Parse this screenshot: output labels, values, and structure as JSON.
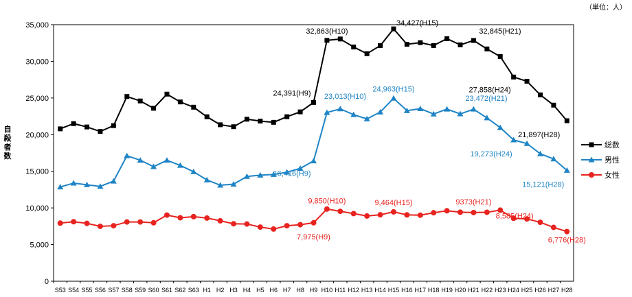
{
  "unit_label": "（単位：人）",
  "ylabel": "自殺者数",
  "chart_data": {
    "type": "line",
    "title": "",
    "unit": "（単位：人）",
    "ylabel": "自殺者数",
    "xlabel": "",
    "ylim": [
      0,
      35000
    ],
    "yticks": [
      0,
      5000,
      10000,
      15000,
      20000,
      25000,
      30000,
      35000
    ],
    "ytick_labels": [
      "0",
      "5,000",
      "10,000",
      "15,000",
      "20,000",
      "25,000",
      "30,000",
      "35,000"
    ],
    "grid": false,
    "legend_position": "right",
    "categories": [
      "S53",
      "S54",
      "S55",
      "S56",
      "S57",
      "S58",
      "S59",
      "S60",
      "S61",
      "S62",
      "S63",
      "H1",
      "H2",
      "H3",
      "H4",
      "H5",
      "H6",
      "H7",
      "H8",
      "H9",
      "H10",
      "H11",
      "H12",
      "H13",
      "H14",
      "H15",
      "H16",
      "H17",
      "H18",
      "H19",
      "H20",
      "H21",
      "H22",
      "H23",
      "H24",
      "H25",
      "H26",
      "H27",
      "H28"
    ],
    "series": [
      {
        "name": "総数",
        "color": "#000000",
        "marker": "square",
        "values": [
          20788,
          21503,
          21048,
          20434,
          21228,
          25202,
          24596,
          23599,
          25524,
          24460,
          23742,
          22436,
          21346,
          21084,
          22104,
          21851,
          21679,
          22445,
          23104,
          24391,
          32863,
          33048,
          31957,
          31042,
          32143,
          34427,
          32325,
          32552,
          32155,
          33093,
          32249,
          32845,
          31690,
          30651,
          27858,
          27283,
          25427,
          24025,
          21897
        ]
      },
      {
        "name": "男性",
        "color": "#1e84c6",
        "marker": "triangle",
        "values": [
          12859,
          13386,
          13155,
          12942,
          13654,
          17116,
          16508,
          15624,
          16502,
          15802,
          14934,
          13818,
          13102,
          13242,
          14296,
          14468,
          14560,
          14874,
          15393,
          16416,
          23013,
          23512,
          22727,
          22144,
          23080,
          24963,
          23272,
          23540,
          22813,
          23478,
          22831,
          23472,
          22283,
          20955,
          19273,
          18787,
          17386,
          16681,
          15121
        ]
      },
      {
        "name": "女性",
        "color": "#e8231f",
        "marker": "circle",
        "values": [
          7929,
          8117,
          7893,
          7492,
          7574,
          8086,
          8088,
          7975,
          9022,
          8658,
          8808,
          8618,
          8244,
          7842,
          7808,
          7383,
          7119,
          7571,
          7711,
          7975,
          9850,
          9536,
          9230,
          8898,
          9063,
          9464,
          9053,
          9012,
          9342,
          9615,
          9418,
          9373,
          9407,
          9696,
          8585,
          8496,
          8041,
          7344,
          6776
        ]
      }
    ],
    "annotations": [
      {
        "series": 0,
        "index": 19,
        "text": "24,391(H9)",
        "color": "#000000"
      },
      {
        "series": 0,
        "index": 20,
        "text": "32,863(H10)",
        "color": "#000000"
      },
      {
        "series": 0,
        "index": 25,
        "text": "34,427(H15)",
        "color": "#000000"
      },
      {
        "series": 0,
        "index": 31,
        "text": "32,845(H21)",
        "color": "#000000"
      },
      {
        "series": 0,
        "index": 34,
        "text": "27,858(H24)",
        "color": "#000000"
      },
      {
        "series": 0,
        "index": 38,
        "text": "21,897(H28)",
        "color": "#000000"
      },
      {
        "series": 1,
        "index": 19,
        "text": "16,416(H9)",
        "color": "#1e84c6"
      },
      {
        "series": 1,
        "index": 20,
        "text": "23,013(H10)",
        "color": "#1e84c6"
      },
      {
        "series": 1,
        "index": 25,
        "text": "24,963(H15)",
        "color": "#1e84c6"
      },
      {
        "series": 1,
        "index": 31,
        "text": "23,472(H21)",
        "color": "#1e84c6"
      },
      {
        "series": 1,
        "index": 34,
        "text": "19,273(H24)",
        "color": "#1e84c6"
      },
      {
        "series": 1,
        "index": 38,
        "text": "15,121(H28)",
        "color": "#1e84c6"
      },
      {
        "series": 2,
        "index": 19,
        "text": "7,975(H9)",
        "color": "#e8231f"
      },
      {
        "series": 2,
        "index": 20,
        "text": "9,850(H10)",
        "color": "#e8231f"
      },
      {
        "series": 2,
        "index": 25,
        "text": "9,464(H15)",
        "color": "#e8231f"
      },
      {
        "series": 2,
        "index": 31,
        "text": "9373(H21)",
        "color": "#e8231f"
      },
      {
        "series": 2,
        "index": 34,
        "text": "8,585(H24)",
        "color": "#e8231f"
      },
      {
        "series": 2,
        "index": 38,
        "text": "6,776(H28)",
        "color": "#e8231f"
      }
    ]
  }
}
